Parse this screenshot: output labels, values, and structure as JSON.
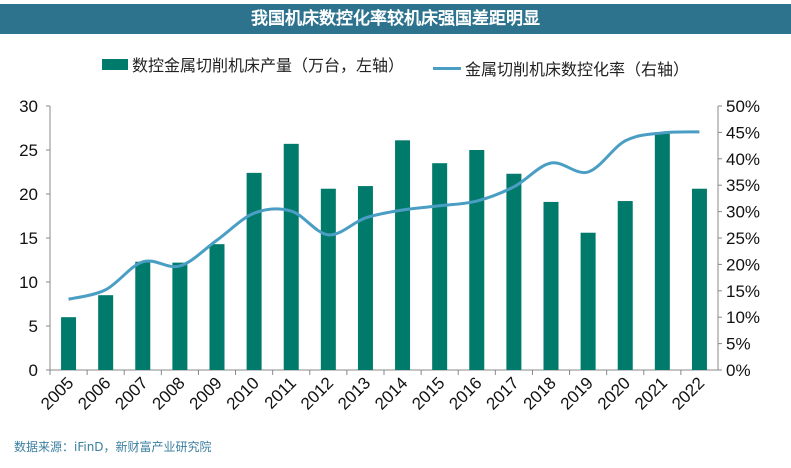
{
  "title": "我国机床数控化率较机床强国差距明显",
  "source": "数据来源：iFinD，新财富产业研究院",
  "colors": {
    "bar": "#007a6a",
    "line": "#4a9ec4",
    "title_bg": "#2e738e"
  },
  "chart_data": {
    "type": "bar+line",
    "title": "我国机床数控化率较机床强国差距明显",
    "categories": [
      "2005",
      "2006",
      "2007",
      "2008",
      "2009",
      "2010",
      "2011",
      "2012",
      "2013",
      "2014",
      "2015",
      "2016",
      "2017",
      "2018",
      "2019",
      "2020",
      "2021",
      "2022"
    ],
    "series": [
      {
        "name": "数控金属切削机床产量（万台，左轴）",
        "type": "bar",
        "axis": "left",
        "values": [
          6.0,
          8.5,
          12.3,
          12.2,
          14.3,
          22.4,
          25.7,
          20.6,
          20.9,
          26.1,
          23.5,
          25.0,
          22.3,
          19.1,
          15.6,
          19.2,
          26.9,
          20.6
        ]
      },
      {
        "name": "金属切削机床数控化率（右轴）",
        "type": "line",
        "axis": "right",
        "values": [
          13.4,
          15.2,
          20.5,
          19.7,
          24.6,
          29.7,
          30.1,
          25.6,
          28.8,
          30.3,
          31.1,
          32.0,
          34.7,
          39.2,
          37.5,
          43.4,
          44.9,
          45.1
        ]
      }
    ],
    "left_axis": {
      "ylim": [
        0,
        30
      ],
      "ticks": [
        "0",
        "5",
        "10",
        "15",
        "20",
        "25",
        "30"
      ]
    },
    "right_axis": {
      "ylim": [
        0,
        50
      ],
      "ticks": [
        "0%",
        "5%",
        "10%",
        "15%",
        "20%",
        "25%",
        "30%",
        "35%",
        "40%",
        "45%",
        "50%"
      ]
    },
    "grid": false,
    "legend": "top"
  }
}
